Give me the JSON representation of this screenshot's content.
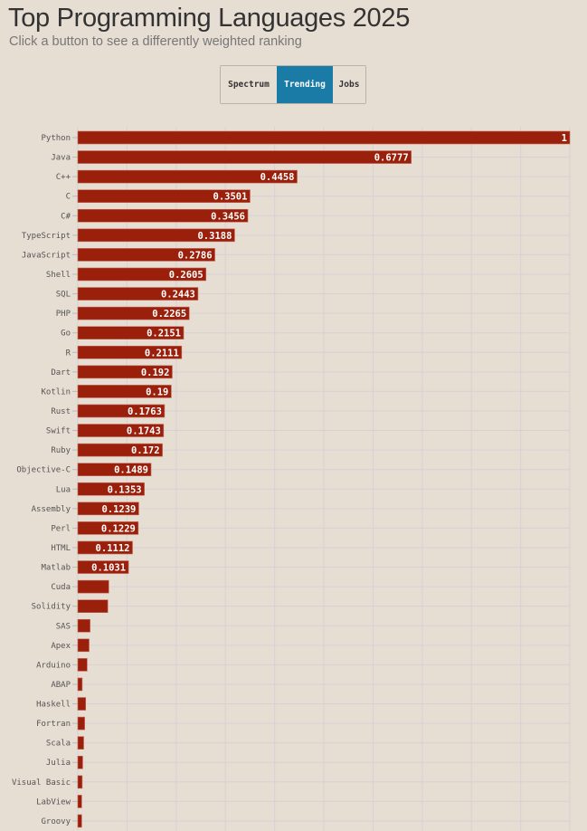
{
  "header": {
    "title": "Top Programming Languages 2025",
    "subtitle": "Click a button to see a differently weighted ranking"
  },
  "buttons": [
    {
      "label": "Spectrum",
      "active": false
    },
    {
      "label": "Trending",
      "active": true
    },
    {
      "label": "Jobs",
      "active": false
    }
  ],
  "colors": {
    "bar": "#9b200c",
    "active_button": "#1a7ba7",
    "background": "#e6ddd3",
    "grid": "#d6d2d4"
  },
  "chart_data": {
    "type": "bar",
    "orientation": "horizontal",
    "xlim": [
      0,
      1
    ],
    "grid": true,
    "categories": [
      "Python",
      "Java",
      "C++",
      "C",
      "C#",
      "TypeScript",
      "JavaScript",
      "Shell",
      "SQL",
      "PHP",
      "Go",
      "R",
      "Dart",
      "Kotlin",
      "Rust",
      "Swift",
      "Ruby",
      "Objective-C",
      "Lua",
      "Assembly",
      "Perl",
      "HTML",
      "Matlab",
      "Cuda",
      "Solidity",
      "SAS",
      "Apex",
      "Arduino",
      "ABAP",
      "Haskell",
      "Fortran",
      "Scala",
      "Julia",
      "Visual Basic",
      "LabView",
      "Groovy"
    ],
    "values": [
      1,
      0.6777,
      0.4458,
      0.3501,
      0.3456,
      0.3188,
      0.2786,
      0.2605,
      0.2443,
      0.2265,
      0.2151,
      0.2111,
      0.192,
      0.19,
      0.1763,
      0.1743,
      0.172,
      0.1489,
      0.1353,
      0.1239,
      0.1229,
      0.1112,
      0.1031,
      0.063,
      0.061,
      0.025,
      0.023,
      0.019,
      0.009,
      0.016,
      0.014,
      0.012,
      0.01,
      0.009,
      0.008,
      0.008
    ],
    "data_labels": [
      "1",
      "0.6777",
      "0.4458",
      "0.3501",
      "0.3456",
      "0.3188",
      "0.2786",
      "0.2605",
      "0.2443",
      "0.2265",
      "0.2151",
      "0.2111",
      "0.192",
      "0.19",
      "0.1763",
      "0.1743",
      "0.172",
      "0.1489",
      "0.1353",
      "0.1239",
      "0.1229",
      "0.1112",
      "0.1031",
      "",
      "",
      "",
      "",
      "",
      "",
      "",
      "",
      "",
      "",
      "",
      "",
      ""
    ]
  }
}
